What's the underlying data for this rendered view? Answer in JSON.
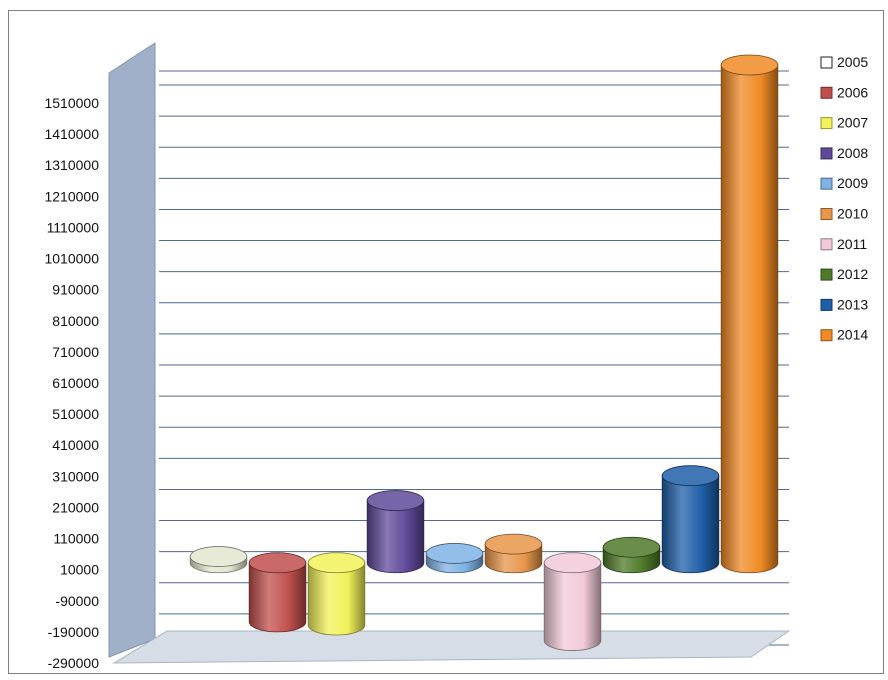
{
  "chart_data": {
    "type": "bar",
    "style": "3d-cylinder",
    "categories": [
      "2005",
      "2006",
      "2007",
      "2008",
      "2009",
      "2010",
      "2011",
      "2012",
      "2013",
      "2014"
    ],
    "series": [
      {
        "name": "2005",
        "value": 20000,
        "color": "#e3e6cf"
      },
      {
        "name": "2006",
        "value": -190000,
        "color": "#c0504d"
      },
      {
        "name": "2007",
        "value": -200000,
        "color": "#f2f25a"
      },
      {
        "name": "2008",
        "value": 200000,
        "color": "#5f4a9a"
      },
      {
        "name": "2009",
        "value": 30000,
        "color": "#7fb2e5"
      },
      {
        "name": "2010",
        "value": 60000,
        "color": "#e8964a"
      },
      {
        "name": "2011",
        "value": -250000,
        "color": "#f2c9d8"
      },
      {
        "name": "2012",
        "value": 50000,
        "color": "#4f7a2a"
      },
      {
        "name": "2013",
        "value": 280000,
        "color": "#1f5fa8"
      },
      {
        "name": "2014",
        "value": 1600000,
        "color": "#f08a24"
      }
    ],
    "y_ticks": [
      "1510000",
      "1410000",
      "1310000",
      "1210000",
      "1110000",
      "1010000",
      "910000",
      "810000",
      "710000",
      "610000",
      "510000",
      "410000",
      "310000",
      "210000",
      "110000",
      "10000",
      "-90000",
      "-190000",
      "-290000"
    ],
    "ylim": [
      -290000,
      1510000
    ],
    "title": "",
    "xlabel": "",
    "ylabel": "",
    "grid": true,
    "legend_position": "right"
  }
}
